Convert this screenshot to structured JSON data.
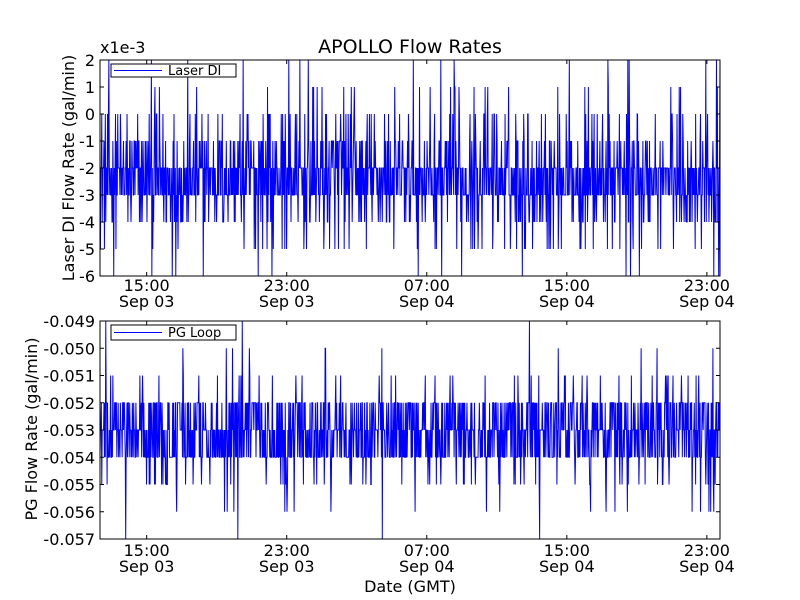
{
  "figure": {
    "title": "APOLLO Flow Rates",
    "xlabel": "Date (GMT)",
    "line_color": "#0000ff",
    "background": "#ffffff"
  },
  "chart_data": [
    {
      "type": "line",
      "name": "top",
      "ylabel": "Laser DI Flow Rate (gal/min)",
      "offset_label": "x1e-3",
      "ylim": [
        -6,
        2
      ],
      "yticks": [
        -6,
        -5,
        -4,
        -3,
        -2,
        -1,
        0,
        1,
        2
      ],
      "ytick_labels": [
        "-6",
        "-5",
        "-4",
        "-3",
        "-2",
        "-1",
        "0",
        "1",
        "2"
      ],
      "xlim": [
        "2015-09-03 12:20",
        "2015-09-04 23:45"
      ],
      "xticks": [
        {
          "time": "2015-09-03 15:00",
          "label": [
            "15:00",
            "Sep 03"
          ]
        },
        {
          "time": "2015-09-03 23:00",
          "label": [
            "23:00",
            "Sep 03"
          ]
        },
        {
          "time": "2015-09-04 07:00",
          "label": [
            "07:00",
            "Sep 04"
          ]
        },
        {
          "time": "2015-09-04 15:00",
          "label": [
            "15:00",
            "Sep 04"
          ]
        },
        {
          "time": "2015-09-04 23:00",
          "label": [
            "23:00",
            "Sep 04"
          ]
        }
      ],
      "legend": {
        "label": "Laser DI",
        "position": "upper-left"
      },
      "grid": false,
      "series": [
        {
          "name": "Laser DI",
          "color": "#0000ff",
          "sampling": "noisy stepped signal quantized at 1e-3, mostly between -4e-3 and -1e-3, centered near -2.5e-3",
          "levels": [
            -6,
            -5,
            -4,
            -3,
            -2,
            -1,
            0,
            1,
            2
          ],
          "level_weights": [
            0.01,
            0.04,
            0.11,
            0.3,
            0.3,
            0.14,
            0.07,
            0.02,
            0.01
          ]
        }
      ]
    },
    {
      "type": "line",
      "name": "bottom",
      "ylabel": "PG Flow Rate (gal/min)",
      "ylim": [
        -0.057,
        -0.049
      ],
      "yticks": [
        -0.057,
        -0.056,
        -0.055,
        -0.054,
        -0.053,
        -0.052,
        -0.051,
        -0.05,
        -0.049
      ],
      "ytick_labels": [
        "-0.057",
        "-0.056",
        "-0.055",
        "-0.054",
        "-0.053",
        "-0.052",
        "-0.051",
        "-0.050",
        "-0.049"
      ],
      "xlim": [
        "2015-09-03 12:20",
        "2015-09-04 23:45"
      ],
      "xticks": [
        {
          "time": "2015-09-03 15:00",
          "label": [
            "15:00",
            "Sep 03"
          ]
        },
        {
          "time": "2015-09-03 23:00",
          "label": [
            "23:00",
            "Sep 03"
          ]
        },
        {
          "time": "2015-09-04 07:00",
          "label": [
            "07:00",
            "Sep 04"
          ]
        },
        {
          "time": "2015-09-04 15:00",
          "label": [
            "15:00",
            "Sep 04"
          ]
        },
        {
          "time": "2015-09-04 23:00",
          "label": [
            "23:00",
            "Sep 04"
          ]
        }
      ],
      "legend": {
        "label": "PG Loop",
        "position": "upper-left"
      },
      "grid": false,
      "series": [
        {
          "name": "PG Loop",
          "color": "#0000ff",
          "sampling": "noisy stepped signal quantized at 0.001, mostly between -0.054 and -0.052, centered near -0.053",
          "levels": [
            -0.057,
            -0.056,
            -0.055,
            -0.054,
            -0.053,
            -0.052,
            -0.051,
            -0.05,
            -0.049
          ],
          "level_weights": [
            0.005,
            0.015,
            0.05,
            0.33,
            0.3,
            0.26,
            0.03,
            0.008,
            0.002
          ]
        }
      ]
    }
  ]
}
